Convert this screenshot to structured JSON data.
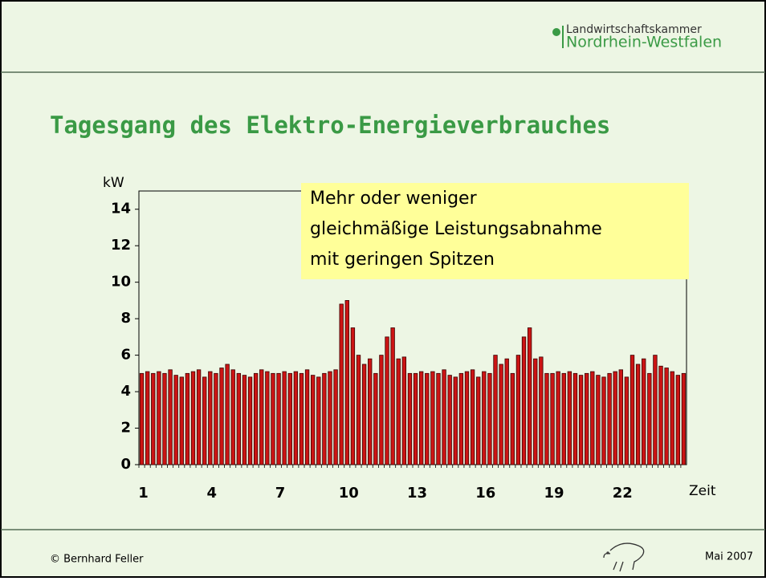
{
  "header": {
    "logo_line1": "Landwirtschaftskammer",
    "logo_line2": "Nordrhein-Westfalen"
  },
  "chart_data": {
    "type": "bar",
    "title": "Tagesgang des Elektro-Energieverbrauches",
    "y_label": "kW",
    "x_label": "Zeit",
    "annotation": [
      "Mehr oder weniger",
      "gleichmäßige Leistungsabnahme",
      "mit geringen Spitzen"
    ],
    "categories": [
      "1",
      null,
      null,
      null,
      null,
      null,
      null,
      null,
      null,
      null,
      null,
      null,
      "4",
      null,
      null,
      null,
      null,
      null,
      null,
      null,
      null,
      null,
      null,
      null,
      "7",
      null,
      null,
      null,
      null,
      null,
      null,
      null,
      null,
      null,
      null,
      null,
      "10",
      null,
      null,
      null,
      null,
      null,
      null,
      null,
      null,
      null,
      null,
      null,
      "13",
      null,
      null,
      null,
      null,
      null,
      null,
      null,
      null,
      null,
      null,
      null,
      "16",
      null,
      null,
      null,
      null,
      null,
      null,
      null,
      null,
      null,
      null,
      null,
      "19",
      null,
      null,
      null,
      null,
      null,
      null,
      null,
      null,
      null,
      null,
      null,
      "22",
      null,
      null,
      null,
      null,
      null,
      null,
      null,
      null,
      null,
      null,
      null
    ],
    "values": [
      5.0,
      5.1,
      5.0,
      5.1,
      5.0,
      5.2,
      4.9,
      4.8,
      5.0,
      5.1,
      5.2,
      4.8,
      5.1,
      5.0,
      5.3,
      5.5,
      5.2,
      5.0,
      4.9,
      4.8,
      5.0,
      5.2,
      5.1,
      5.0,
      5.0,
      5.1,
      5.0,
      5.1,
      5.0,
      5.2,
      4.9,
      4.8,
      5.0,
      5.1,
      5.2,
      8.8,
      9.0,
      7.5,
      6.0,
      5.5,
      5.8,
      5.0,
      6.0,
      7.0,
      7.5,
      5.8,
      5.9,
      5.0,
      5.0,
      5.1,
      5.0,
      5.1,
      5.0,
      5.2,
      4.9,
      4.8,
      5.0,
      5.1,
      5.2,
      4.8,
      5.1,
      5.0,
      6.0,
      5.5,
      5.8,
      5.0,
      6.0,
      7.0,
      7.5,
      5.8,
      5.9,
      5.0,
      5.0,
      5.1,
      5.0,
      5.1,
      5.0,
      4.9,
      5.0,
      5.1,
      4.9,
      4.8,
      5.0,
      5.1,
      5.2,
      4.8,
      6.0,
      5.5,
      5.8,
      5.0,
      6.0,
      5.4,
      5.3,
      5.1,
      4.9,
      5.0
    ],
    "color": "#cc1414",
    "ylim": [
      0,
      15
    ],
    "yticks": [
      0,
      2,
      4,
      6,
      8,
      10,
      12,
      14
    ]
  },
  "footer": {
    "left": "© Bernhard Feller",
    "right": "Mai 2007"
  }
}
